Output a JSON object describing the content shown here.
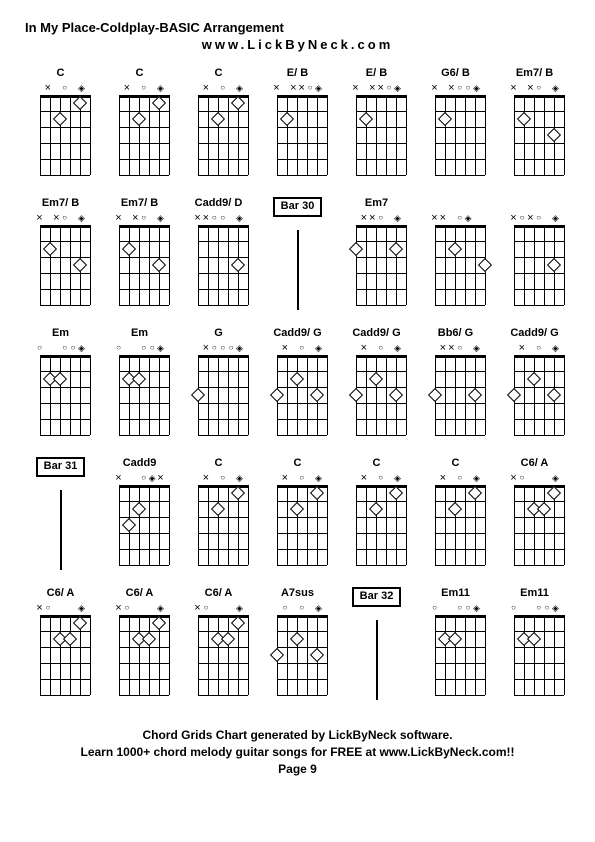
{
  "title": "In My Place-Coldplay-BASIC Arrangement",
  "subtitle": "www.LickByNeck.com",
  "footer": {
    "line1": "Chord Grids Chart generated by LickByNeck software.",
    "line2": "Learn 1000+ chord melody guitar songs for FREE at www.LickByNeck.com!!",
    "line3": "Page 9"
  },
  "layout": {
    "cols": 7,
    "rows": 5,
    "diagram_width": 50,
    "diagram_height": 80,
    "num_strings": 6,
    "num_frets": 5,
    "colors": {
      "background": "#ffffff",
      "line": "#000000",
      "text": "#000000"
    },
    "fontsize_label": 11,
    "fontsize_title": 13,
    "fontsize_footer": 12
  },
  "cells": [
    {
      "type": "chord",
      "name": "C",
      "markers": [
        "",
        "x",
        "",
        "o",
        "",
        "d"
      ],
      "fret": "",
      "dots": [
        {
          "s": 4,
          "f": 2
        },
        {
          "s": 2,
          "f": 1
        }
      ]
    },
    {
      "type": "chord",
      "name": "C",
      "markers": [
        "",
        "x",
        "",
        "o",
        "",
        "d"
      ],
      "fret": "",
      "dots": [
        {
          "s": 4,
          "f": 2
        },
        {
          "s": 2,
          "f": 1
        }
      ]
    },
    {
      "type": "chord",
      "name": "C",
      "markers": [
        "",
        "x",
        "",
        "o",
        "",
        "d"
      ],
      "fret": "",
      "dots": [
        {
          "s": 4,
          "f": 2
        },
        {
          "s": 2,
          "f": 1
        }
      ]
    },
    {
      "type": "chord",
      "name": "E/ B",
      "markers": [
        "x",
        "",
        "x",
        "x",
        "o",
        "d"
      ],
      "fret": "",
      "dots": [
        {
          "s": 5,
          "f": 2
        }
      ]
    },
    {
      "type": "chord",
      "name": "E/ B",
      "markers": [
        "x",
        "",
        "x",
        "x",
        "o",
        "d"
      ],
      "fret": "",
      "dots": [
        {
          "s": 5,
          "f": 2
        }
      ]
    },
    {
      "type": "chord",
      "name": "G6/ B",
      "markers": [
        "x",
        "",
        "x",
        "o",
        "o",
        "d"
      ],
      "fret": "",
      "dots": [
        {
          "s": 5,
          "f": 2
        }
      ]
    },
    {
      "type": "chord",
      "name": "Em7/ B",
      "markers": [
        "x",
        "",
        "x",
        "o",
        "",
        "d"
      ],
      "fret": "",
      "dots": [
        {
          "s": 5,
          "f": 2
        },
        {
          "s": 2,
          "f": 3
        }
      ]
    },
    {
      "type": "chord",
      "name": "Em7/ B",
      "markers": [
        "x",
        "",
        "x",
        "o",
        "",
        "d"
      ],
      "fret": "",
      "dots": [
        {
          "s": 5,
          "f": 2
        },
        {
          "s": 2,
          "f": 3
        }
      ]
    },
    {
      "type": "chord",
      "name": "Em7/ B",
      "markers": [
        "x",
        "",
        "x",
        "o",
        "",
        "d"
      ],
      "fret": "",
      "dots": [
        {
          "s": 5,
          "f": 2
        },
        {
          "s": 2,
          "f": 3
        }
      ]
    },
    {
      "type": "chord",
      "name": "Cadd9/ D",
      "markers": [
        "x",
        "x",
        "o",
        "o",
        "",
        "d"
      ],
      "fret": "",
      "dots": [
        {
          "s": 2,
          "f": 3
        }
      ]
    },
    {
      "type": "bar",
      "name": "Bar 30"
    },
    {
      "type": "chord",
      "name": "Em7",
      "markers": [
        "",
        "x",
        "x",
        "o",
        "",
        "d"
      ],
      "fret": "",
      "dots": [
        {
          "s": 6,
          "f": 2
        },
        {
          "s": 2,
          "f": 2
        }
      ]
    },
    {
      "type": "chord",
      "name": "",
      "markers": [
        "x",
        "x",
        "",
        "o",
        "d",
        ""
      ],
      "fret": "",
      "dots": [
        {
          "s": 4,
          "f": 2
        },
        {
          "s": 1,
          "f": 3
        }
      ]
    },
    {
      "type": "chord",
      "name": "",
      "markers": [
        "x",
        "o",
        "x",
        "o",
        "",
        "d"
      ],
      "fret": "",
      "dots": [
        {
          "s": 2,
          "f": 3
        }
      ]
    },
    {
      "type": "chord",
      "name": "Em",
      "markers": [
        "o",
        "",
        "",
        "o",
        "o",
        "d"
      ],
      "fret": "",
      "dots": [
        {
          "s": 5,
          "f": 2
        },
        {
          "s": 4,
          "f": 2
        }
      ]
    },
    {
      "type": "chord",
      "name": "Em",
      "markers": [
        "o",
        "",
        "",
        "o",
        "o",
        "d"
      ],
      "fret": "",
      "dots": [
        {
          "s": 5,
          "f": 2
        },
        {
          "s": 4,
          "f": 2
        }
      ]
    },
    {
      "type": "chord",
      "name": "G",
      "markers": [
        "",
        "x",
        "o",
        "o",
        "o",
        "d"
      ],
      "fret": "",
      "dots": [
        {
          "s": 6,
          "f": 3
        }
      ]
    },
    {
      "type": "chord",
      "name": "Cadd9/ G",
      "markers": [
        "",
        "x",
        "",
        "o",
        "",
        "d"
      ],
      "fret": "",
      "dots": [
        {
          "s": 6,
          "f": 3
        },
        {
          "s": 4,
          "f": 2
        },
        {
          "s": 2,
          "f": 3
        }
      ]
    },
    {
      "type": "chord",
      "name": "Cadd9/ G",
      "markers": [
        "",
        "x",
        "",
        "o",
        "",
        "d"
      ],
      "fret": "",
      "dots": [
        {
          "s": 6,
          "f": 3
        },
        {
          "s": 4,
          "f": 2
        },
        {
          "s": 2,
          "f": 3
        }
      ]
    },
    {
      "type": "chord",
      "name": "Bb6/ G",
      "markers": [
        "",
        "x",
        "x",
        "o",
        "",
        "d"
      ],
      "fret": "",
      "dots": [
        {
          "s": 6,
          "f": 3
        },
        {
          "s": 2,
          "f": 3
        }
      ]
    },
    {
      "type": "chord",
      "name": "Cadd9/ G",
      "markers": [
        "",
        "x",
        "",
        "o",
        "",
        "d"
      ],
      "fret": "",
      "dots": [
        {
          "s": 6,
          "f": 3
        },
        {
          "s": 4,
          "f": 2
        },
        {
          "s": 2,
          "f": 3
        }
      ]
    },
    {
      "type": "bar",
      "name": "Bar 31"
    },
    {
      "type": "chord",
      "name": "Cadd9",
      "markers": [
        "x",
        "",
        "",
        "o",
        "d",
        "x"
      ],
      "fret": "",
      "dots": [
        {
          "s": 5,
          "f": 3
        },
        {
          "s": 4,
          "f": 2
        }
      ]
    },
    {
      "type": "chord",
      "name": "C",
      "markers": [
        "",
        "x",
        "",
        "o",
        "",
        "d"
      ],
      "fret": "",
      "dots": [
        {
          "s": 4,
          "f": 2
        },
        {
          "s": 2,
          "f": 1
        }
      ]
    },
    {
      "type": "chord",
      "name": "C",
      "markers": [
        "",
        "x",
        "",
        "o",
        "",
        "d"
      ],
      "fret": "",
      "dots": [
        {
          "s": 4,
          "f": 2
        },
        {
          "s": 2,
          "f": 1
        }
      ]
    },
    {
      "type": "chord",
      "name": "C",
      "markers": [
        "",
        "x",
        "",
        "o",
        "",
        "d"
      ],
      "fret": "",
      "dots": [
        {
          "s": 4,
          "f": 2
        },
        {
          "s": 2,
          "f": 1
        }
      ]
    },
    {
      "type": "chord",
      "name": "C",
      "markers": [
        "",
        "x",
        "",
        "o",
        "",
        "d"
      ],
      "fret": "",
      "dots": [
        {
          "s": 4,
          "f": 2
        },
        {
          "s": 2,
          "f": 1
        }
      ]
    },
    {
      "type": "chord",
      "name": "C6/ A",
      "markers": [
        "x",
        "o",
        "",
        "",
        "",
        "d"
      ],
      "fret": "",
      "dots": [
        {
          "s": 4,
          "f": 2
        },
        {
          "s": 3,
          "f": 2
        },
        {
          "s": 2,
          "f": 1
        }
      ]
    },
    {
      "type": "chord",
      "name": "C6/ A",
      "markers": [
        "x",
        "o",
        "",
        "",
        "",
        "d"
      ],
      "fret": "",
      "dots": [
        {
          "s": 4,
          "f": 2
        },
        {
          "s": 3,
          "f": 2
        },
        {
          "s": 2,
          "f": 1
        }
      ]
    },
    {
      "type": "chord",
      "name": "C6/ A",
      "markers": [
        "x",
        "o",
        "",
        "",
        "",
        "d"
      ],
      "fret": "",
      "dots": [
        {
          "s": 4,
          "f": 2
        },
        {
          "s": 3,
          "f": 2
        },
        {
          "s": 2,
          "f": 1
        }
      ]
    },
    {
      "type": "chord",
      "name": "C6/ A",
      "markers": [
        "x",
        "o",
        "",
        "",
        "",
        "d"
      ],
      "fret": "",
      "dots": [
        {
          "s": 4,
          "f": 2
        },
        {
          "s": 3,
          "f": 2
        },
        {
          "s": 2,
          "f": 1
        }
      ]
    },
    {
      "type": "chord",
      "name": "A7sus",
      "markers": [
        "",
        "o",
        "",
        "o",
        "",
        "d"
      ],
      "fret": "",
      "dots": [
        {
          "s": 6,
          "f": 3
        },
        {
          "s": 4,
          "f": 2
        },
        {
          "s": 2,
          "f": 3
        }
      ]
    },
    {
      "type": "bar",
      "name": "Bar 32"
    },
    {
      "type": "chord",
      "name": "Em11",
      "markers": [
        "o",
        "",
        "",
        "o",
        "o",
        "d"
      ],
      "fret": "",
      "dots": [
        {
          "s": 5,
          "f": 2
        },
        {
          "s": 4,
          "f": 2
        }
      ]
    },
    {
      "type": "chord",
      "name": "Em11",
      "markers": [
        "o",
        "",
        "",
        "o",
        "o",
        "d"
      ],
      "fret": "",
      "dots": [
        {
          "s": 5,
          "f": 2
        },
        {
          "s": 4,
          "f": 2
        }
      ]
    }
  ]
}
